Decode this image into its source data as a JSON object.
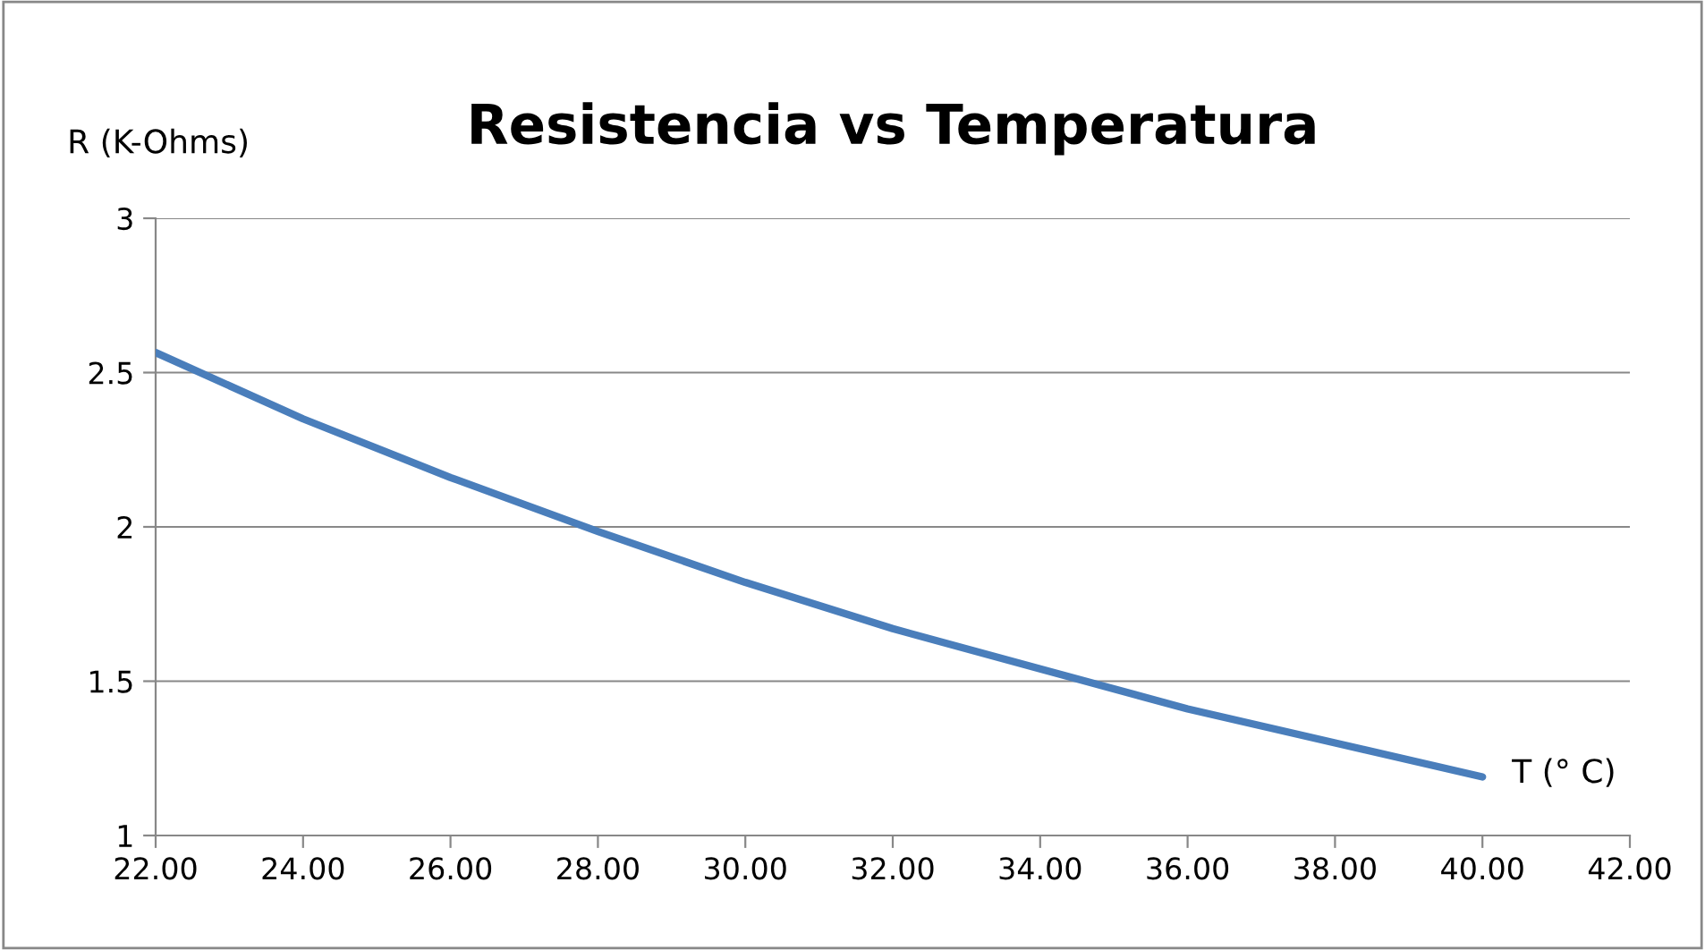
{
  "chart_data": {
    "type": "line",
    "title": "Resistencia vs Temperatura",
    "xlabel": "T (° C)",
    "ylabel": "R (K-Ohms)",
    "x": [
      22,
      24,
      26,
      28,
      30,
      32,
      34,
      36,
      38,
      40
    ],
    "series": [
      {
        "color": "#4a7ebb",
        "values": [
          2.565,
          2.35,
          2.16,
          1.985,
          1.82,
          1.67,
          1.54,
          1.41,
          1.3,
          1.19
        ]
      }
    ],
    "xlim": [
      22,
      42
    ],
    "xticks": [
      {
        "value": 22,
        "label": "22.00"
      },
      {
        "value": 24,
        "label": "24.00"
      },
      {
        "value": 26,
        "label": "26.00"
      },
      {
        "value": 28,
        "label": "28.00"
      },
      {
        "value": 30,
        "label": "30.00"
      },
      {
        "value": 32,
        "label": "32.00"
      },
      {
        "value": 34,
        "label": "34.00"
      },
      {
        "value": 36,
        "label": "36.00"
      },
      {
        "value": 38,
        "label": "38.00"
      },
      {
        "value": 40,
        "label": "40.00"
      },
      {
        "value": 42,
        "label": "42.00"
      }
    ],
    "ylim": [
      1,
      3
    ],
    "yticks": [
      1,
      1.5,
      2,
      2.5,
      3
    ],
    "grid": "y",
    "marker": "none",
    "line_style": "solid"
  }
}
